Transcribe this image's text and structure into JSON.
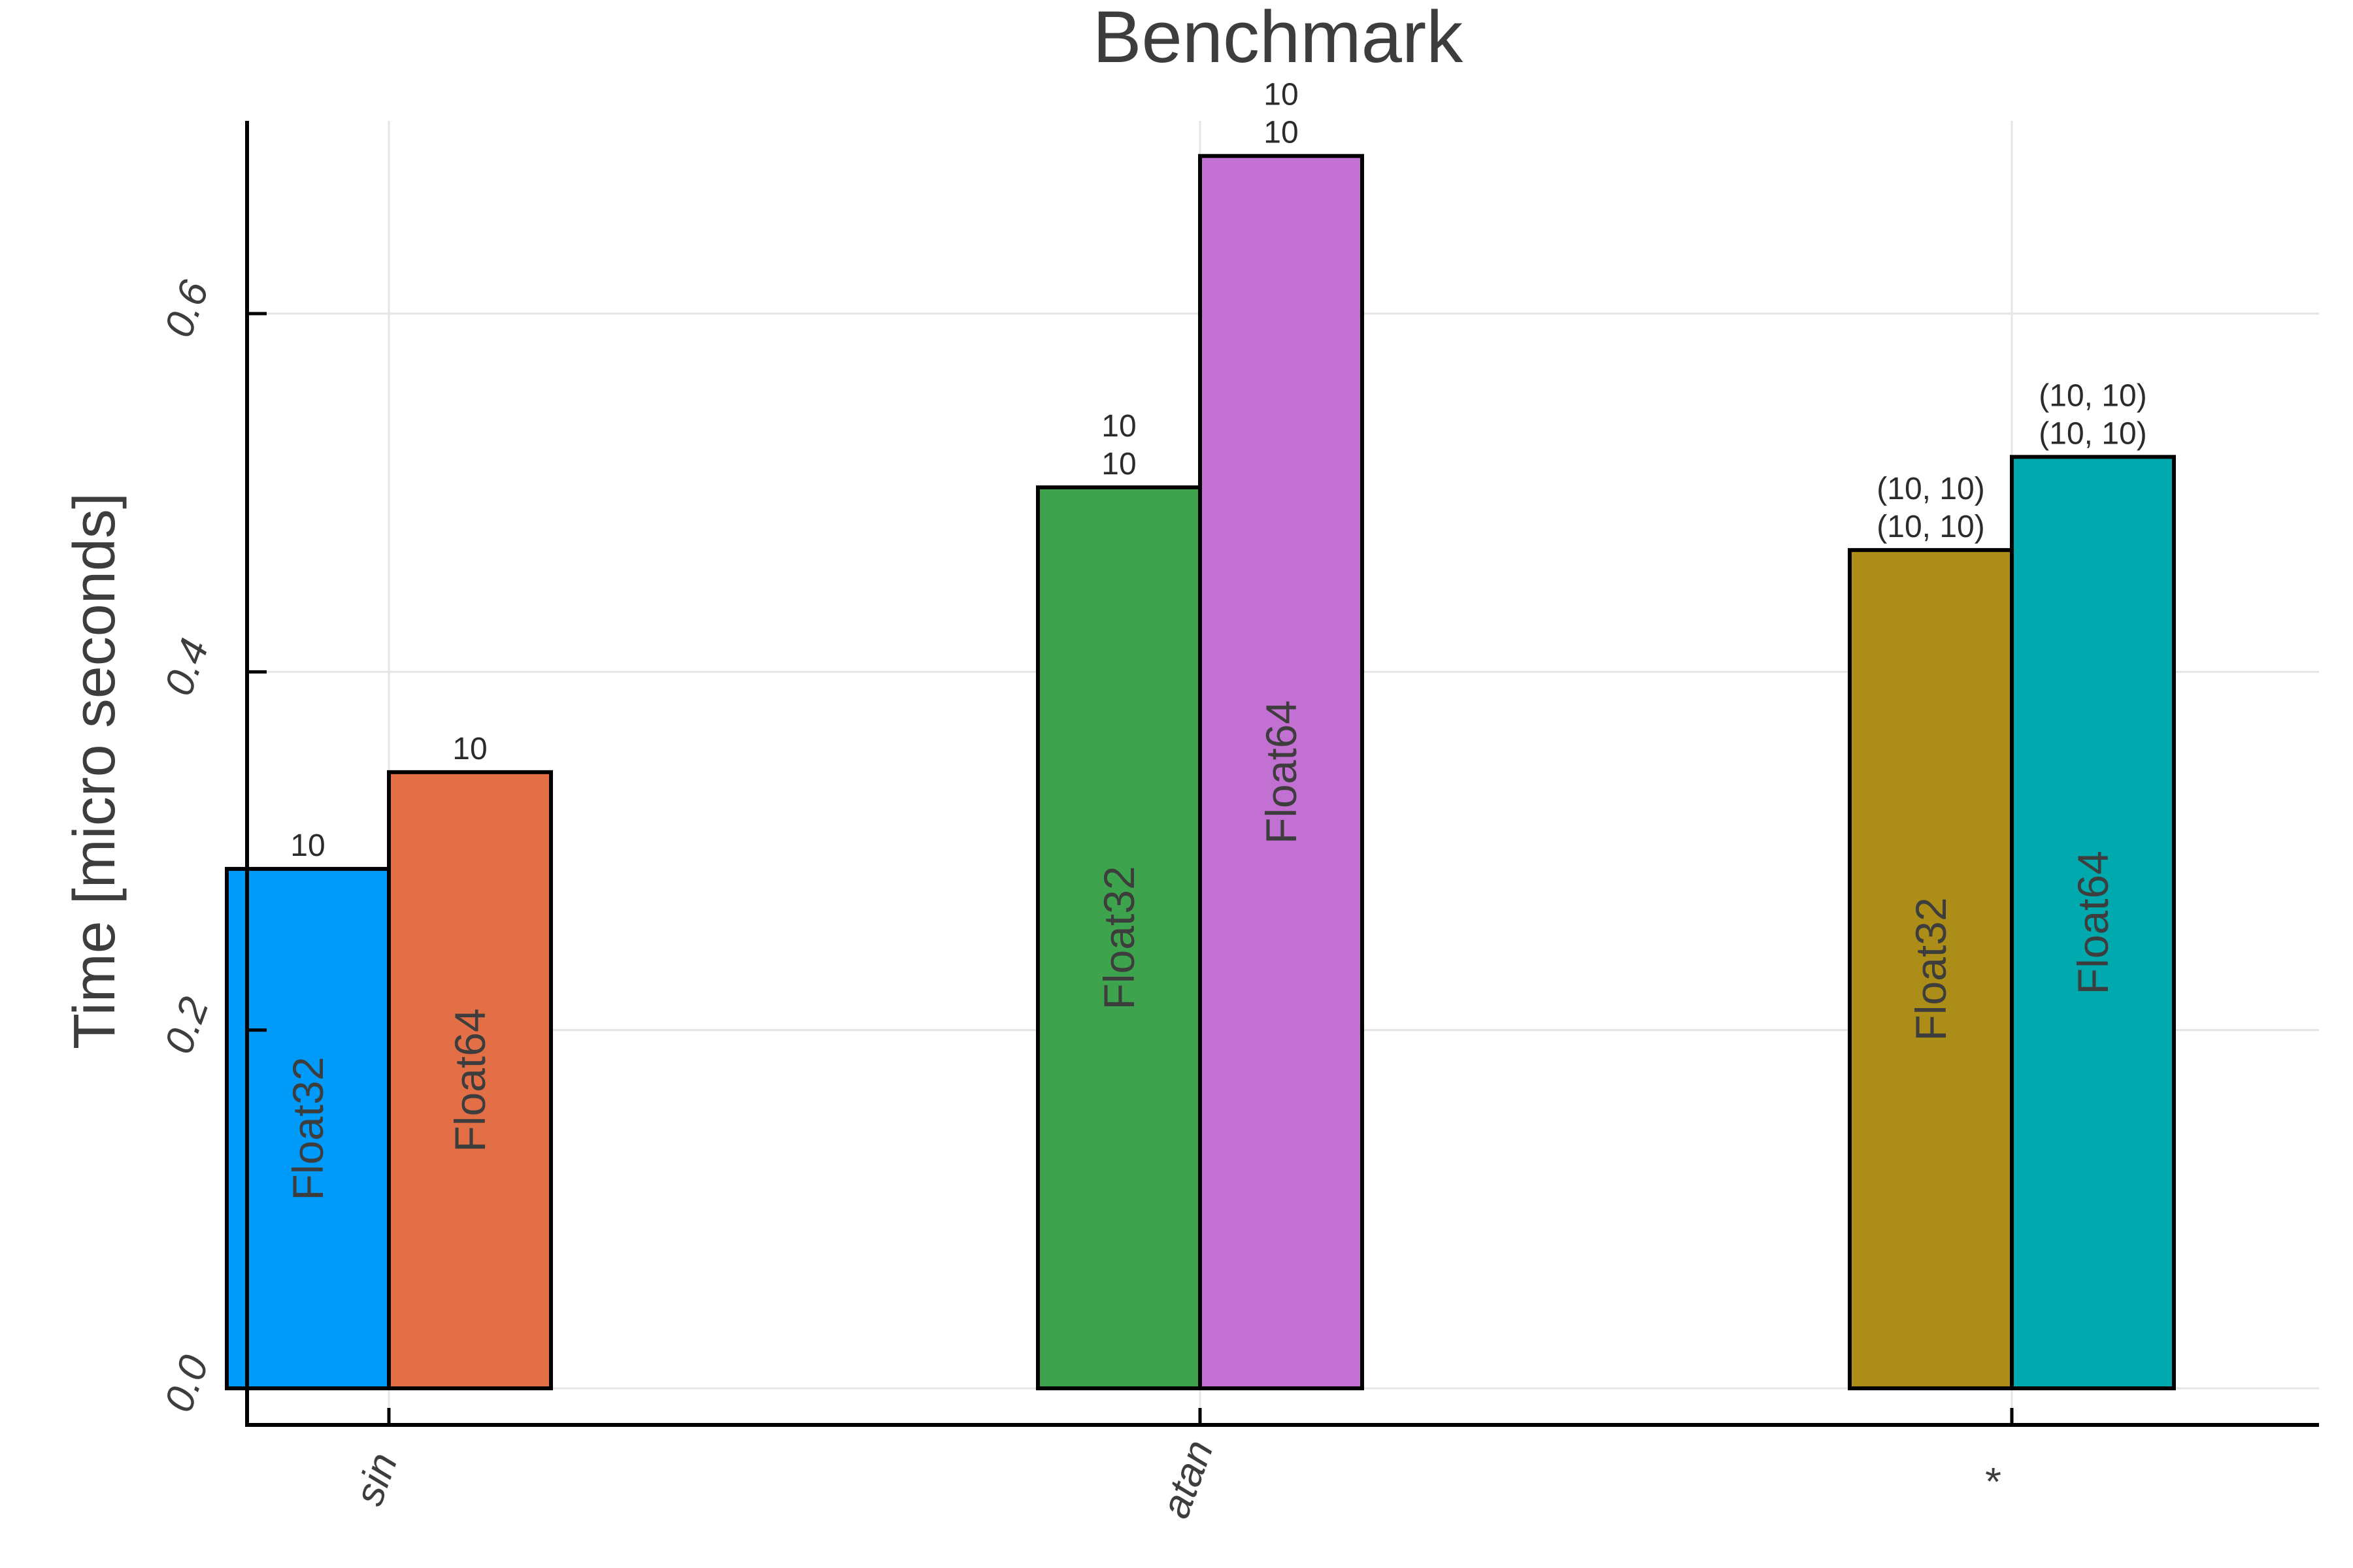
{
  "chart_data": {
    "type": "bar",
    "title": "Benchmark",
    "xlabel": "",
    "ylabel": "Time [micro seconds]",
    "ylim": [
      -0.02,
      0.7
    ],
    "yticks": [
      "0.0",
      "0.2",
      "0.4",
      "0.6"
    ],
    "ytick_values": [
      0.0,
      0.2,
      0.4,
      0.6
    ],
    "grid": true,
    "categories": [
      "sin",
      "atan",
      "*"
    ],
    "series": [
      {
        "name": "Float32",
        "values": [
          0.29,
          0.503,
          0.468
        ]
      },
      {
        "name": "Float64",
        "values": [
          0.344,
          0.688,
          0.52
        ]
      }
    ],
    "bars": [
      {
        "category": "sin",
        "label": "Float32",
        "value": 0.29,
        "color": "#009af9",
        "annotation": [
          "10"
        ]
      },
      {
        "category": "sin",
        "label": "Float64",
        "value": 0.344,
        "color": "#e26f46",
        "annotation": [
          "10"
        ]
      },
      {
        "category": "atan",
        "label": "Float32",
        "value": 0.503,
        "color": "#3da44d",
        "annotation": [
          "10",
          "10"
        ]
      },
      {
        "category": "atan",
        "label": "Float64",
        "value": 0.688,
        "color": "#c271d2",
        "annotation": [
          "10",
          "10"
        ]
      },
      {
        "category": "*",
        "label": "Float32",
        "value": 0.468,
        "color": "#ac8d18",
        "annotation": [
          "(10, 10)",
          "(10, 10)"
        ]
      },
      {
        "category": "*",
        "label": "Float64",
        "value": 0.52,
        "color": "#00a9ad",
        "annotation": [
          "(10, 10)",
          "(10, 10)"
        ]
      }
    ]
  }
}
